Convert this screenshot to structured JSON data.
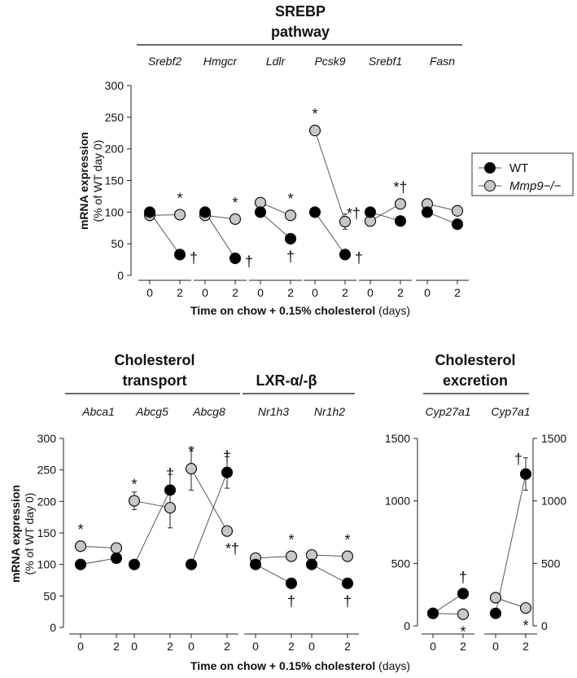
{
  "chart_data": [
    {
      "type": "line",
      "group_title_lines": [
        "SREBP",
        "pathway"
      ],
      "x": [
        "0",
        "2"
      ],
      "xlabel_bold": "Time on chow + 0.15% cholesterol",
      "xlabel_unit": "(days)",
      "ylabel_bold": "mRNA expression",
      "ylabel": "(% of WT day 0)",
      "ylim": [
        0,
        300
      ],
      "yticks": [
        "0",
        "50",
        "100",
        "150",
        "200",
        "250",
        "300"
      ],
      "panels": [
        {
          "gene": "Srebf2",
          "series": [
            {
              "name": "WT",
              "values": [
                100,
                33
              ]
            },
            {
              "name": "Mmp9−/−",
              "values": [
                95,
                96
              ]
            }
          ],
          "marks": [
            {
              "text": "†",
              "point": "wt",
              "pos": "right"
            },
            {
              "text": "*",
              "point": "mmp",
              "pos": "above"
            }
          ]
        },
        {
          "gene": "Hmgcr",
          "series": [
            {
              "name": "WT",
              "values": [
                100,
                27
              ]
            },
            {
              "name": "Mmp9−/−",
              "values": [
                95,
                89
              ]
            }
          ],
          "marks": [
            {
              "text": "†",
              "point": "wt",
              "pos": "right"
            },
            {
              "text": "*",
              "point": "mmp",
              "pos": "above"
            }
          ]
        },
        {
          "gene": "Ldlr",
          "series": [
            {
              "name": "WT",
              "values": [
                100,
                58
              ]
            },
            {
              "name": "Mmp9−/−",
              "values": [
                115,
                95
              ]
            }
          ],
          "marks": [
            {
              "text": "†",
              "point": "wt",
              "pos": "below"
            },
            {
              "text": "*",
              "point": "mmp",
              "pos": "above"
            }
          ]
        },
        {
          "gene": "Pcsk9",
          "series": [
            {
              "name": "WT",
              "values": [
                100,
                33
              ]
            },
            {
              "name": "Mmp9−/−",
              "values": [
                229,
                85
              ]
            }
          ],
          "err": [
            null,
            [
              229,
              12
            ]
          ],
          "marks": [
            {
              "text": "*",
              "point": "mmp0",
              "pos": "above"
            },
            {
              "text": "*†",
              "point": "mmp",
              "pos": "upright"
            },
            {
              "text": "†",
              "point": "wt",
              "pos": "right"
            }
          ]
        },
        {
          "gene": "Srebf1",
          "series": [
            {
              "name": "WT",
              "values": [
                100,
                86
              ]
            },
            {
              "name": "Mmp9−/−",
              "values": [
                86,
                113
              ]
            }
          ],
          "marks": [
            {
              "text": "*†",
              "point": "mmp",
              "pos": "above"
            }
          ]
        },
        {
          "gene": "Fasn",
          "series": [
            {
              "name": "WT",
              "values": [
                100,
                81
              ]
            },
            {
              "name": "Mmp9−/−",
              "values": [
                113,
                102
              ]
            }
          ],
          "marks": []
        }
      ],
      "legend": [
        "WT",
        "Mmp9−/−"
      ]
    },
    {
      "type": "line",
      "group_titles": [
        {
          "lines": [
            "Cholesterol",
            "transport"
          ],
          "panels": [
            0,
            1,
            2
          ]
        },
        {
          "lines": [
            "LXR-α/-β"
          ],
          "panels": [
            3,
            4
          ]
        }
      ],
      "x": [
        "0",
        "2"
      ],
      "xlabel_bold": "Time on chow + 0.15% cholesterol",
      "xlabel_unit": "(days)",
      "ylabel_bold": "mRNA expression",
      "ylabel": "(% of WT day 0)",
      "ylim": [
        0,
        300
      ],
      "yticks": [
        "0",
        "50",
        "100",
        "150",
        "200",
        "250",
        "300"
      ],
      "panels": [
        {
          "gene": "Abca1",
          "series": [
            {
              "name": "WT",
              "values": [
                100,
                110
              ]
            },
            {
              "name": "Mmp9−/−",
              "values": [
                129,
                126
              ]
            }
          ],
          "marks": [
            {
              "text": "*",
              "point": "mmp0",
              "pos": "above"
            }
          ]
        },
        {
          "gene": "Abcg5",
          "series": [
            {
              "name": "WT",
              "values": [
                100,
                218
              ]
            },
            {
              "name": "Mmp9−/−",
              "values": [
                201,
                190
              ]
            }
          ],
          "err_wt": [
            null,
            25
          ],
          "err_mmp": [
            14,
            32
          ],
          "marks": [
            {
              "text": "*",
              "point": "mmp0",
              "pos": "above"
            },
            {
              "text": "†",
              "point": "wt",
              "pos": "above"
            }
          ]
        },
        {
          "gene": "Abcg8",
          "series": [
            {
              "name": "WT",
              "values": [
                100,
                246
              ]
            },
            {
              "name": "Mmp9−/−",
              "values": [
                252,
                153
              ]
            }
          ],
          "err_wt": [
            null,
            25
          ],
          "err_mmp": [
            34,
            null
          ],
          "marks": [
            {
              "text": "*",
              "point": "mmp0",
              "pos": "above"
            },
            {
              "text": "†",
              "point": "wt",
              "pos": "above"
            },
            {
              "text": "*†",
              "point": "mmp",
              "pos": "belowright"
            }
          ]
        },
        {
          "gene": "Nr1h3",
          "series": [
            {
              "name": "WT",
              "values": [
                100,
                70
              ]
            },
            {
              "name": "Mmp9−/−",
              "values": [
                110,
                113
              ]
            }
          ],
          "marks": [
            {
              "text": "*",
              "point": "mmp",
              "pos": "above"
            },
            {
              "text": "†",
              "point": "wt",
              "pos": "below"
            }
          ]
        },
        {
          "gene": "Nr1h2",
          "series": [
            {
              "name": "WT",
              "values": [
                100,
                70
              ]
            },
            {
              "name": "Mmp9−/−",
              "values": [
                115,
                113
              ]
            }
          ],
          "marks": [
            {
              "text": "*",
              "point": "mmp",
              "pos": "above"
            },
            {
              "text": "†",
              "point": "wt",
              "pos": "below"
            }
          ]
        }
      ]
    },
    {
      "type": "line",
      "group_title_lines": [
        "Cholesterol",
        "excretion"
      ],
      "x": [
        "0",
        "2"
      ],
      "ylim": [
        0,
        1500
      ],
      "yticks": [
        "0",
        "500",
        "1000",
        "1500"
      ],
      "panels": [
        {
          "gene": "Cyp27a1",
          "series": [
            {
              "name": "WT",
              "values": [
                100,
                258
              ]
            },
            {
              "name": "Mmp9−/−",
              "values": [
                100,
                93
              ]
            }
          ],
          "marks": [
            {
              "text": "†",
              "point": "wt",
              "pos": "above"
            },
            {
              "text": "*",
              "point": "mmp",
              "pos": "below"
            }
          ]
        },
        {
          "gene": "Cyp7a1",
          "series": [
            {
              "name": "WT",
              "values": [
                100,
                1215
              ]
            },
            {
              "name": "Mmp9−/−",
              "values": [
                225,
                143
              ]
            }
          ],
          "err_wt": [
            null,
            130
          ],
          "marks": [
            {
              "text": "†",
              "point": "wt",
              "pos": "upleft"
            },
            {
              "text": "*",
              "point": "mmp",
              "pos": "below"
            }
          ]
        }
      ]
    }
  ]
}
